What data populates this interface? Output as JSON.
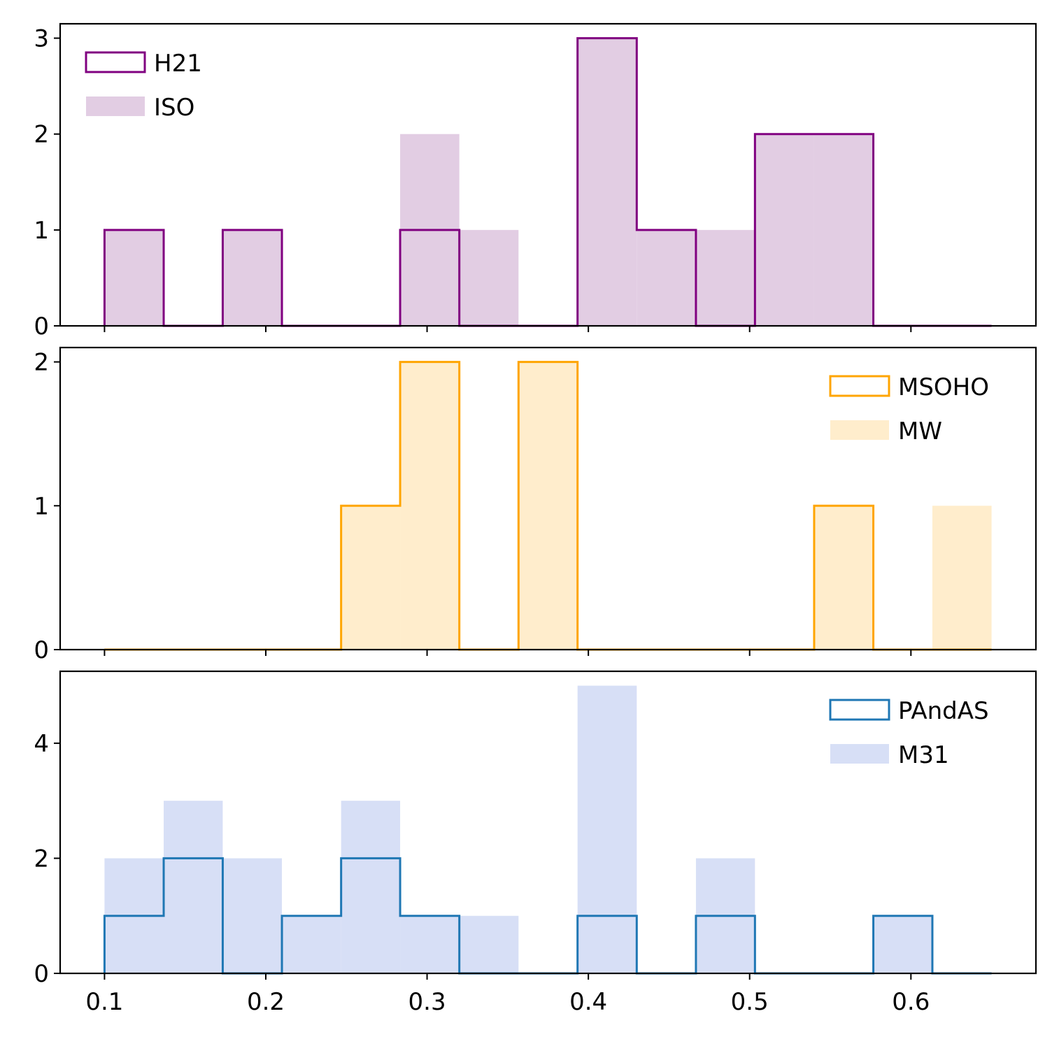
{
  "chart_data": [
    {
      "type": "histogram",
      "bin_edges": [
        0.1,
        0.1367,
        0.1733,
        0.21,
        0.2467,
        0.2833,
        0.32,
        0.3567,
        0.3933,
        0.43,
        0.4667,
        0.5033,
        0.54,
        0.5767,
        0.6133,
        0.65
      ],
      "ylim": [
        0,
        3.15
      ],
      "yticks": [
        "0",
        "1",
        "2",
        "3"
      ],
      "ytick_values": [
        0,
        1,
        2,
        3
      ],
      "legend_position": "upper-left",
      "filled_series": {
        "name": "ISO",
        "color": "#e2cde3",
        "values": [
          1,
          0,
          1,
          0,
          0,
          2,
          1,
          0,
          3,
          1,
          1,
          2,
          2,
          0,
          0
        ]
      },
      "step_series": {
        "name": "H21",
        "color": "#800080",
        "values": [
          1,
          0,
          1,
          0,
          0,
          1,
          0,
          0,
          3,
          1,
          0,
          2,
          2,
          0,
          0
        ]
      }
    },
    {
      "type": "histogram",
      "bin_edges": [
        0.1,
        0.1367,
        0.1733,
        0.21,
        0.2467,
        0.2833,
        0.32,
        0.3567,
        0.3933,
        0.43,
        0.4667,
        0.5033,
        0.54,
        0.5767,
        0.6133,
        0.65
      ],
      "ylim": [
        0,
        2.1
      ],
      "yticks": [
        "0",
        "1",
        "2"
      ],
      "ytick_values": [
        0,
        1,
        2
      ],
      "legend_position": "upper-right",
      "filled_series": {
        "name": "MW",
        "color": "#ffedcc",
        "values": [
          0,
          0,
          0,
          0,
          1,
          2,
          0,
          2,
          0,
          0,
          0,
          0,
          1,
          0,
          1
        ]
      },
      "step_series": {
        "name": "MSOHO",
        "color": "#ffa500",
        "values": [
          0,
          0,
          0,
          0,
          1,
          2,
          0,
          2,
          0,
          0,
          0,
          0,
          1,
          0,
          0
        ]
      }
    },
    {
      "type": "histogram",
      "bin_edges": [
        0.1,
        0.1367,
        0.1733,
        0.21,
        0.2467,
        0.2833,
        0.32,
        0.3567,
        0.3933,
        0.43,
        0.4667,
        0.5033,
        0.54,
        0.5767,
        0.6133,
        0.65
      ],
      "ylim": [
        0,
        5.25
      ],
      "yticks": [
        "0",
        "2",
        "4"
      ],
      "ytick_values": [
        0,
        2,
        4
      ],
      "legend_position": "upper-right",
      "filled_series": {
        "name": "M31",
        "color": "#d7dff6",
        "values": [
          2,
          3,
          2,
          1,
          3,
          1,
          1,
          0,
          5,
          0,
          2,
          0,
          0,
          1,
          0
        ]
      },
      "step_series": {
        "name": "PAndAS",
        "color": "#1f77b4",
        "values": [
          1,
          2,
          0,
          1,
          2,
          1,
          0,
          0,
          1,
          0,
          1,
          0,
          0,
          1,
          0
        ]
      }
    }
  ],
  "x_axis": {
    "xlim": [
      0.0725,
      0.6775
    ],
    "ticks": [
      "0.1",
      "0.2",
      "0.3",
      "0.4",
      "0.5",
      "0.6"
    ],
    "tick_values": [
      0.1,
      0.2,
      0.3,
      0.4,
      0.5,
      0.6
    ]
  }
}
